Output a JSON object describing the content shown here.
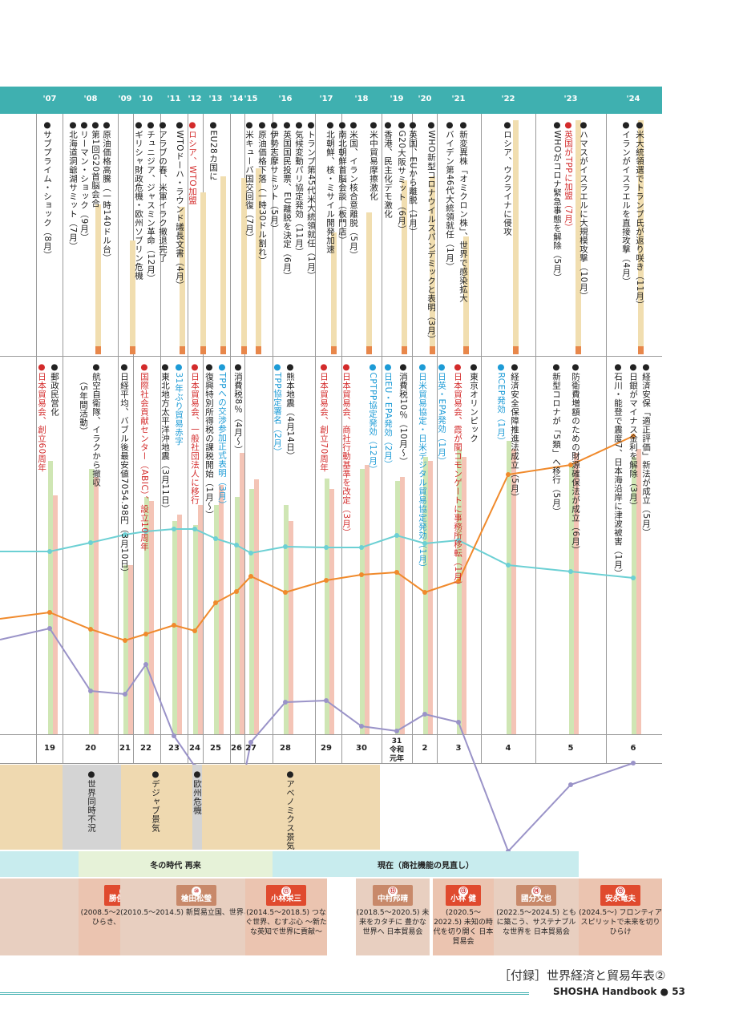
{
  "years": [
    "'07",
    "'08",
    "'09",
    "'10",
    "'11",
    "'12",
    "'13",
    "'14",
    "'15",
    "'16",
    "'17",
    "'18",
    "'19",
    "'20",
    "'21",
    "'22",
    "'23",
    "'24"
  ],
  "era_numbers": [
    "19",
    "20",
    "21",
    "22",
    "23",
    "24",
    "25",
    "26",
    "27",
    "28",
    "29",
    "30",
    "31 令和元年",
    "2",
    "3",
    "4",
    "5",
    "6"
  ],
  "world_events": [
    "●サブプライム・ショック（8月）",
    "●第1回G20首脳会合",
    "●原油価格高騰（一時140ドル台）",
    "●リーマン・ショック（9月）",
    "●北海道洞爺湖サミット（7月）",
    "●ギリシャ財政危機・欧州ソブリン危機",
    "●チュニジア、ジャスミン革命（12月）",
    "●アラブの春、米軍イラク撤退完了",
    "●WTOドーハ・ラウンド議長文書（4月）",
    "●ロシア、WTO加盟",
    "●EU28カ国に",
    "●米キューバ国交回復（7月）",
    "●原油価格下落（一時30ドル割れ）",
    "●伊勢志摩サミット（5月）",
    "●英国国民投票、EU離脱を決定（6月）",
    "●気候変動パリ協定発効（11月）",
    "●トランプ第45代米大統領就任（1月）",
    "●北朝鮮、核・ミサイル開発加速",
    "●南北朝鮮首脳会談（板門店）",
    "●米国、イラン核合意離脱（5月）",
    "●米中貿易摩擦激化",
    "●香港、民主化デモ激化",
    "●G20大阪サミット（6月）",
    "●英国、EUから離脱（1月）",
    "●WHO新型コロナウイルスパンデミックと表明（3月）",
    "●バイデン第46代大統領就任（1月）",
    "●新変異株「オミクロン株」、世界で感染拡大",
    "●ロシア、ウクライナに侵攻",
    "●WHOがコロナ緊急事態を解除（5月）",
    "●英国がTPPに加盟（7月）",
    "●ハマスがイスラエルに大規模攻撃（10月）",
    "●イランがイスラエルを直接攻撃（4月）",
    "●米大統領選でトランプ氏が返り咲き（11月）"
  ],
  "japan_events": [
    "●日本貿易会、創立60周年",
    "●郵政民営化",
    "●航空自衛隊、イラクから撤収",
    "（5年間活動）",
    "●日経平均、バブル後最安値7054.98円（3月10日）",
    "●国際社会貢献センター（ABIC）、設立10周年",
    "●東北地方太平洋沖地震（3月11日）",
    "●31年ぶり貿易赤字",
    "●日本貿易会、一般社団法人に移行",
    "●復興特別所得税の課税開始（1月～）",
    "●TPPへの交渉参加正式表明（3月）",
    "●消費税8％（4月～）",
    "●TPP協定署名（2月）",
    "●熊本地震（4月14日）",
    "●日本貿易会、創立70周年",
    "●日本貿易会、商社行動基準を改定（3月）",
    "●CPTPP協定発効（12月）",
    "●日EU・EPA発効（2月）",
    "●消費税10％（10月～）",
    "●日米貿易協定・日米デジタル貿易協定発効（1月）",
    "●日英・EPA発効（1月）",
    "●日本貿易会、霞が関コモンゲートに事務所移転（1月）",
    "●東京オリンピック",
    "●RCEP発効（1月）",
    "●経済安全保障推進法成立（5月）",
    "●新型コロナが「5類」へ移行（5月）",
    "●防衛費増額のための財源確保法が成立（6月）",
    "●経済安保「適正評価」新法が成立（5月）",
    "●日銀がマイナス金利を解除（3月）",
    "●石川・能登で震度7、日本海沿岸に津波被害（1月）"
  ],
  "economy_labels": [
    "●世界同時不況",
    "●デジャブ景気",
    "●欧州危機",
    "●アベノミクス景気"
  ],
  "bands": [
    {
      "label": "冬の時代 再来"
    },
    {
      "label": "現在（商社機能の見直し）"
    }
  ],
  "presidents": [
    {
      "num": "⑨",
      "name": "勝俣宣夫",
      "text": "(2008.5～2010.5) 未来をひらき、世界を結ぶ"
    },
    {
      "num": "⑩",
      "name": "槍田松瑩",
      "text": "(2010.5～2014.5) 新貿易立国、世界とともに"
    },
    {
      "num": "⑪",
      "name": "小林栄三",
      "text": "(2014.5～2018.5) つなぐ世界、むすぶ心 ～新たな英知で世界に貢献～"
    },
    {
      "num": "⑫",
      "name": "中村邦晴",
      "text": "(2018.5～2020.5) 未来をカタチに 豊かな世界へ 日本貿易会"
    },
    {
      "num": "⑬",
      "name": "小林 健",
      "text": "(2020.5～2022.5) 未知の時代を切り開く 日本貿易会"
    },
    {
      "num": "⑭",
      "name": "國分文也",
      "text": "(2022.5～2024.5) ともに築こう、サステナブルな世界を 日本貿易会"
    },
    {
      "num": "⑮",
      "name": "安永竜夫",
      "text": "(2024.5～) フロンティアスピリットで未来を切りひらけ"
    }
  ],
  "footer": {
    "title": "［付録］世界経済と貿易年表②",
    "brand": "SHOSHA Handbook ● 53"
  },
  "colors": {
    "header": "#3fb0b0",
    "orange_line": "#f08a2c",
    "cyan_line": "#6cd0d4",
    "purple_line": "#9a93c8",
    "bar_green": "#cfe6b4",
    "bar_pink": "#f4c4b6",
    "bar_beige": "#f1deb0"
  }
}
